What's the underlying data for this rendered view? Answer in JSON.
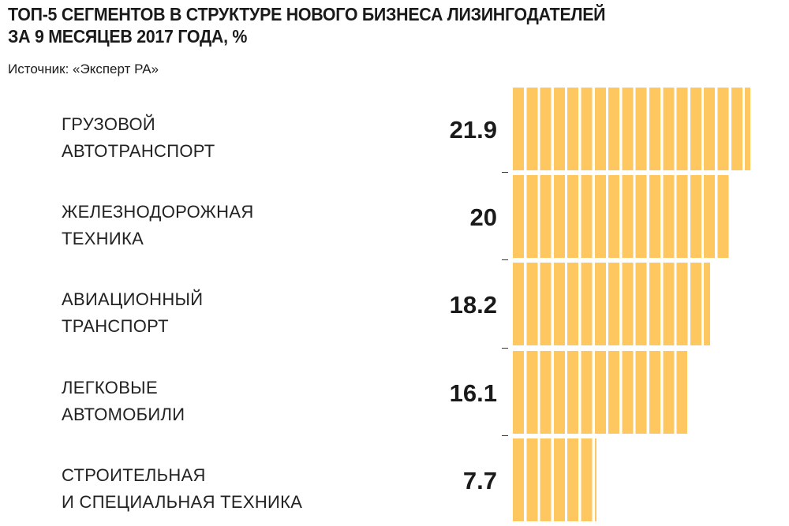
{
  "title_lines": [
    "ТОП-5 СЕГМЕНТОВ В СТРУКТУРЕ НОВОГО БИЗНЕСА ЛИЗИНГОДАТЕЛЕЙ",
    "ЗА 9 МЕСЯЦЕВ 2017 ГОДА, %"
  ],
  "source": "Источник: «Эксперт РА»",
  "chart_data": {
    "type": "bar",
    "orientation": "horizontal",
    "title": "ТОП-5 СЕГМЕНТОВ В СТРУКТУРЕ НОВОГО БИЗНЕСА ЛИЗИНГОДАТЕЛЕЙ ЗА 9 МЕСЯЦЕВ 2017 ГОДА, %",
    "categories": [
      [
        "ГРУЗОВОЙ",
        "АВТОТРАНСПОРТ"
      ],
      [
        "ЖЕЛЕЗНОДОРОЖНАЯ",
        "ТЕХНИКА"
      ],
      [
        "АВИАЦИОННЫЙ",
        "ТРАНСПОРТ"
      ],
      [
        "ЛЕГКОВЫЕ",
        "АВТОМОБИЛИ"
      ],
      [
        "СТРОИТЕЛЬНАЯ",
        "И СПЕЦИАЛЬНАЯ ТЕХНИКА"
      ]
    ],
    "values": [
      21.9,
      20,
      18.2,
      16.1,
      7.7
    ],
    "value_labels": [
      "21.9",
      "20",
      "18.2",
      "16.1",
      "7.7"
    ],
    "bar_color": "#FFC75F",
    "grid": false
  }
}
